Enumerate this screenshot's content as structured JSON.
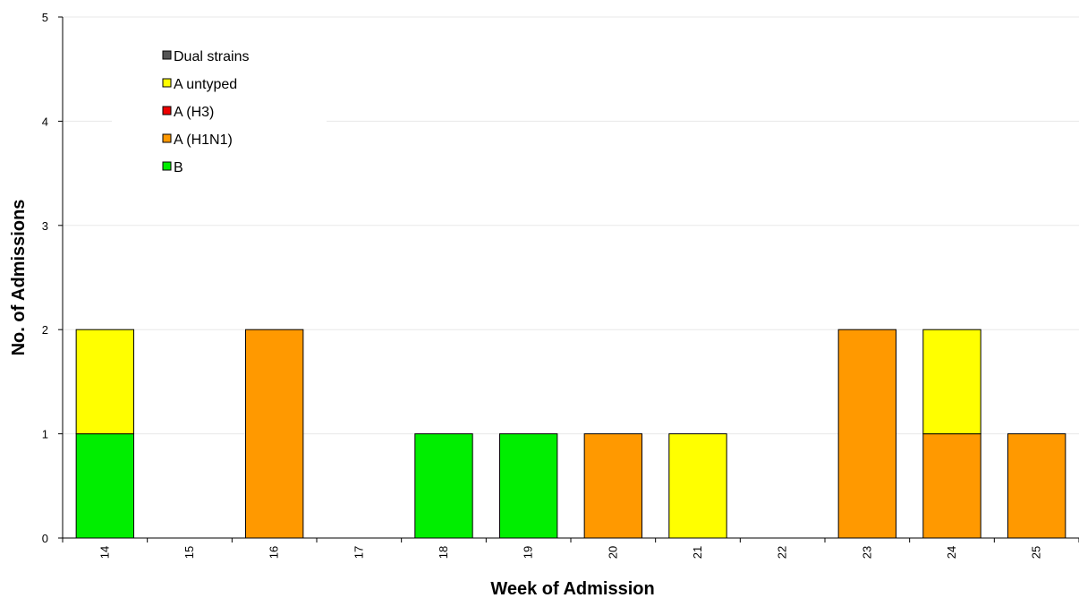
{
  "chart_data": {
    "type": "bar",
    "stacked": true,
    "title": "",
    "xlabel": "Week of Admission",
    "ylabel": "No. of Admissions",
    "categories": [
      "14",
      "15",
      "16",
      "17",
      "18",
      "19",
      "20",
      "21",
      "22",
      "23",
      "24",
      "25"
    ],
    "ylim": [
      0,
      5
    ],
    "yticks": [
      "0",
      "1",
      "2",
      "3",
      "4",
      "5"
    ],
    "grid": true,
    "legend_position": "top-left",
    "legend": [
      "Dual strains",
      "A untyped",
      "A (H3)",
      "A (H1N1)",
      "B"
    ],
    "series": [
      {
        "name": "B",
        "color": "#00ee00",
        "values": [
          1,
          0,
          0,
          0,
          1,
          1,
          0,
          0,
          0,
          0,
          0,
          0
        ]
      },
      {
        "name": "A (H1N1)",
        "color": "#ff9900",
        "values": [
          0,
          0,
          2,
          0,
          0,
          0,
          1,
          0,
          0,
          2,
          1,
          1
        ]
      },
      {
        "name": "A (H3)",
        "color": "#ee0000",
        "values": [
          0,
          0,
          0,
          0,
          0,
          0,
          0,
          0,
          0,
          0,
          0,
          0
        ]
      },
      {
        "name": "A untyped",
        "color": "#ffff00",
        "values": [
          1,
          0,
          0,
          0,
          0,
          0,
          0,
          1,
          0,
          0,
          1,
          0
        ]
      },
      {
        "name": "Dual strains",
        "color": "#555555",
        "values": [
          0,
          0,
          0,
          0,
          0,
          0,
          0,
          0,
          0,
          0,
          0,
          0
        ]
      }
    ]
  }
}
